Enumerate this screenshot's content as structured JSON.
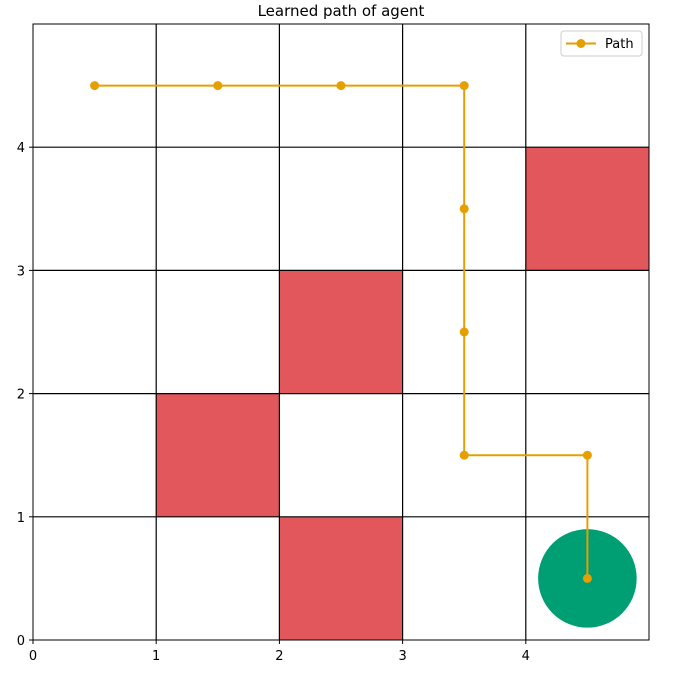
{
  "chart_data": {
    "type": "line",
    "title": "Learned path of agent",
    "xlabel": "",
    "ylabel": "",
    "xlim": [
      0,
      5
    ],
    "ylim": [
      0,
      5
    ],
    "x_ticks": [
      "0",
      "1",
      "2",
      "3",
      "4"
    ],
    "y_ticks": [
      "0",
      "1",
      "2",
      "3",
      "4"
    ],
    "grid": true,
    "legend": {
      "placement": "top-right",
      "entries": [
        "Path"
      ]
    },
    "colors": {
      "path": "#e69f00",
      "obstacle": "#e1575b",
      "goal": "#009e73",
      "grid": "#000000"
    },
    "obstacles": [
      {
        "x": 4,
        "y": 3
      },
      {
        "x": 2,
        "y": 2
      },
      {
        "x": 1,
        "y": 1
      },
      {
        "x": 2,
        "y": 0
      }
    ],
    "goal": {
      "x": 4.5,
      "y": 0.5,
      "radius": 0.4
    },
    "series": [
      {
        "name": "Path",
        "x": [
          0.5,
          1.5,
          2.5,
          3.5,
          3.5,
          3.5,
          3.5,
          4.5,
          4.5
        ],
        "y": [
          4.5,
          4.5,
          4.5,
          4.5,
          3.5,
          2.5,
          1.5,
          1.5,
          0.5
        ]
      }
    ]
  }
}
